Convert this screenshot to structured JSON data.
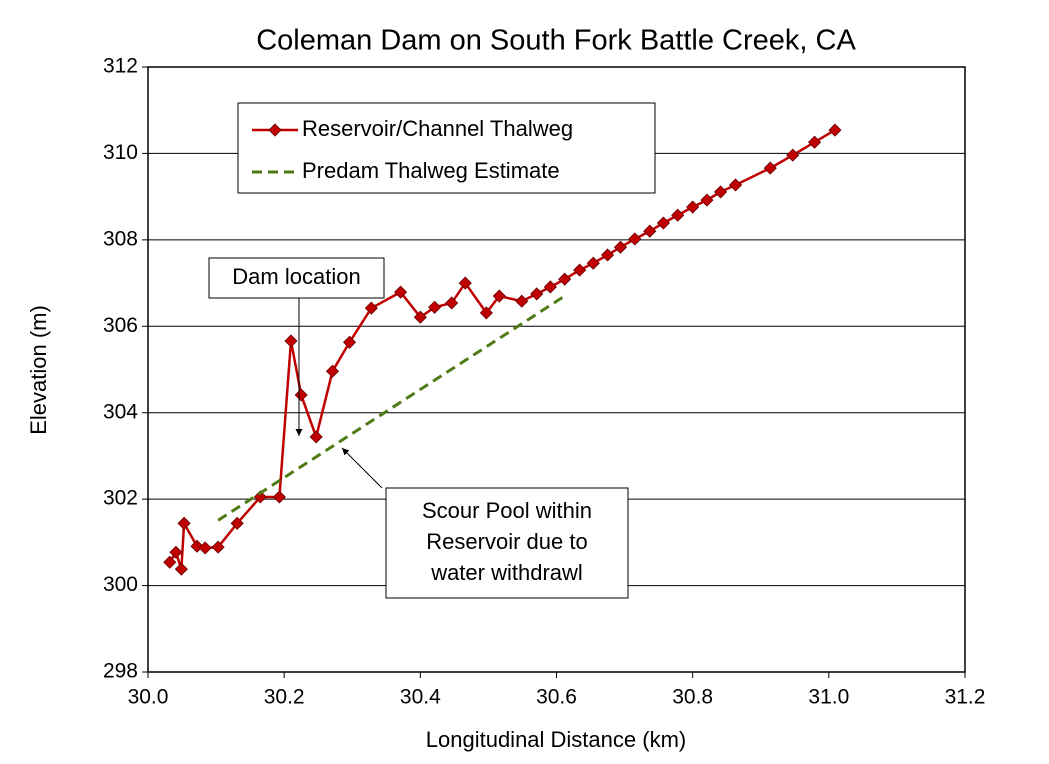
{
  "chart_data": {
    "type": "line",
    "title": "Coleman Dam on South Fork Battle Creek, CA",
    "x_label": "Longitudinal Distance (km)",
    "y_label": "Elevation (m)",
    "series": [
      {
        "name": "Reservoir/Channel Thalweg",
        "color": "#c00000",
        "marker": "diamond",
        "dashed": false,
        "x": [
          30.032,
          30.041,
          30.049,
          30.053,
          30.072,
          30.084,
          30.103,
          30.131,
          30.165,
          30.193,
          30.21,
          30.225,
          30.247,
          30.271,
          30.296,
          30.328,
          30.371,
          30.4,
          30.421,
          30.446,
          30.466,
          30.497,
          30.516,
          30.549,
          30.571,
          30.591,
          30.612,
          30.634,
          30.654,
          30.675,
          30.694,
          30.715,
          30.737,
          30.757,
          30.778,
          30.8,
          30.821,
          30.841,
          30.863,
          30.914,
          30.947,
          30.979,
          31.009
        ],
        "values": [
          300.54,
          300.77,
          300.38,
          301.44,
          300.91,
          300.87,
          300.89,
          301.44,
          302.05,
          302.05,
          305.66,
          304.41,
          303.44,
          304.96,
          305.63,
          306.42,
          306.79,
          306.21,
          306.44,
          306.54,
          307.0,
          306.31,
          306.7,
          306.58,
          306.75,
          306.91,
          307.09,
          307.3,
          307.46,
          307.65,
          307.83,
          308.02,
          308.2,
          308.39,
          308.57,
          308.76,
          308.92,
          309.11,
          309.27,
          309.66,
          309.96,
          310.26,
          310.54
        ]
      },
      {
        "name": "Predam Thalweg Estimate",
        "color": "#4f7a16",
        "marker": "none",
        "dashed": true,
        "x": [
          30.103,
          30.612
        ],
        "values": [
          301.51,
          306.7
        ]
      }
    ],
    "xlim": [
      30.0,
      31.2
    ],
    "xticks": [
      {
        "value": 30.0,
        "label": "30.0"
      },
      {
        "value": 30.2,
        "label": "30.2"
      },
      {
        "value": 30.4,
        "label": "30.4"
      },
      {
        "value": 30.6,
        "label": "30.6"
      },
      {
        "value": 30.8,
        "label": "30.8"
      },
      {
        "value": 31.0,
        "label": "31.0"
      },
      {
        "value": 31.2,
        "label": "31.2"
      }
    ],
    "ylim": [
      298,
      312
    ],
    "yticks": [
      298,
      300,
      302,
      304,
      306,
      308,
      310,
      312
    ],
    "grid": true,
    "legend": "upper left",
    "annotations": [
      {
        "lines": [
          "Dam location"
        ]
      },
      {
        "lines": [
          "Scour Pool within",
          "Reservoir due to",
          "water withdrawl"
        ]
      }
    ]
  }
}
